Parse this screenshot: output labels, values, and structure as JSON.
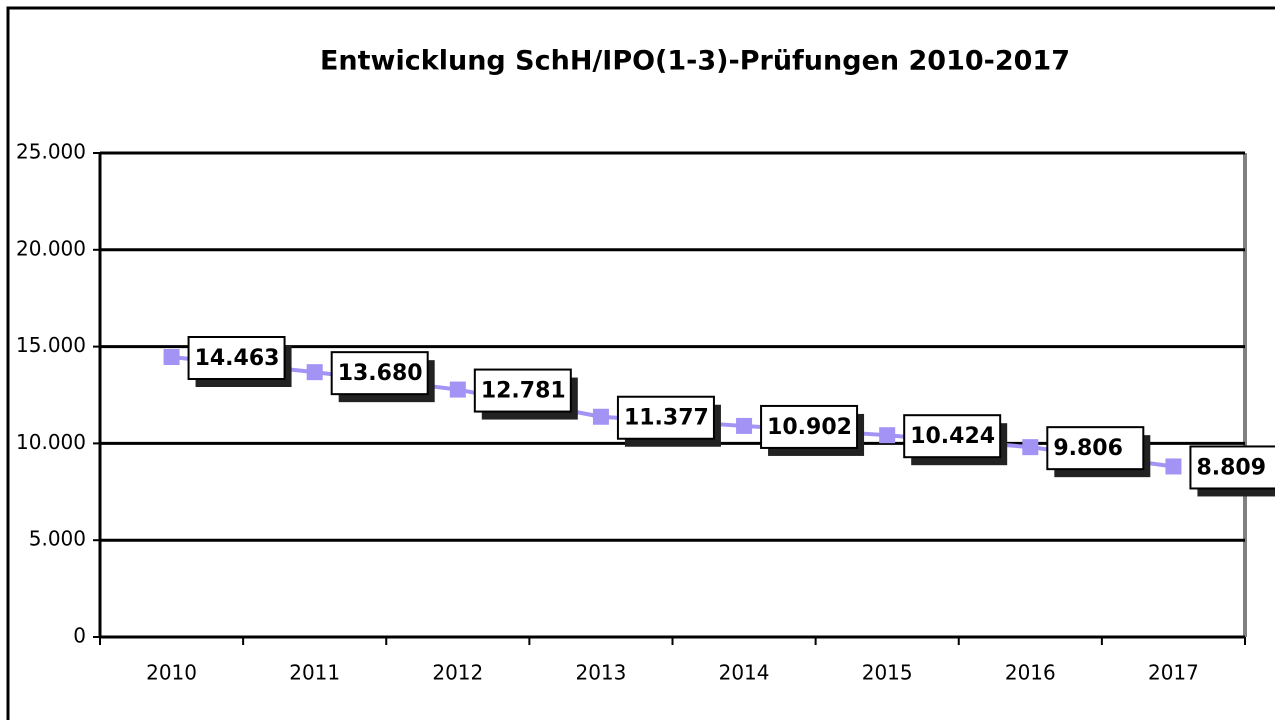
{
  "chart_data": {
    "type": "line",
    "title": "Entwicklung SchH/IPO(1-3)-Prüfungen  2010-2017",
    "categories": [
      "2010",
      "2011",
      "2012",
      "2013",
      "2014",
      "2015",
      "2016",
      "2017"
    ],
    "series": [
      {
        "name": "SchH/IPO(1-3)-Prüfungen",
        "color": "#a393f5",
        "values": [
          14463,
          13680,
          12781,
          11377,
          10902,
          10424,
          9806,
          8809
        ],
        "value_labels": [
          "14.463",
          "13.680",
          "12.781",
          "11.377",
          "10.902",
          "10.424",
          "9.806",
          "8.809"
        ]
      }
    ],
    "ylim": [
      0,
      25000
    ],
    "yticks": [
      0,
      {
        "value": 5000,
        "label": "5.000"
      },
      {
        "value": 10000,
        "label": "10.000"
      },
      {
        "value": 15000,
        "label": "15.000"
      },
      {
        "value": 20000,
        "label": "20.000"
      },
      {
        "value": 25000,
        "label": "25.000"
      }
    ],
    "grid": true
  }
}
